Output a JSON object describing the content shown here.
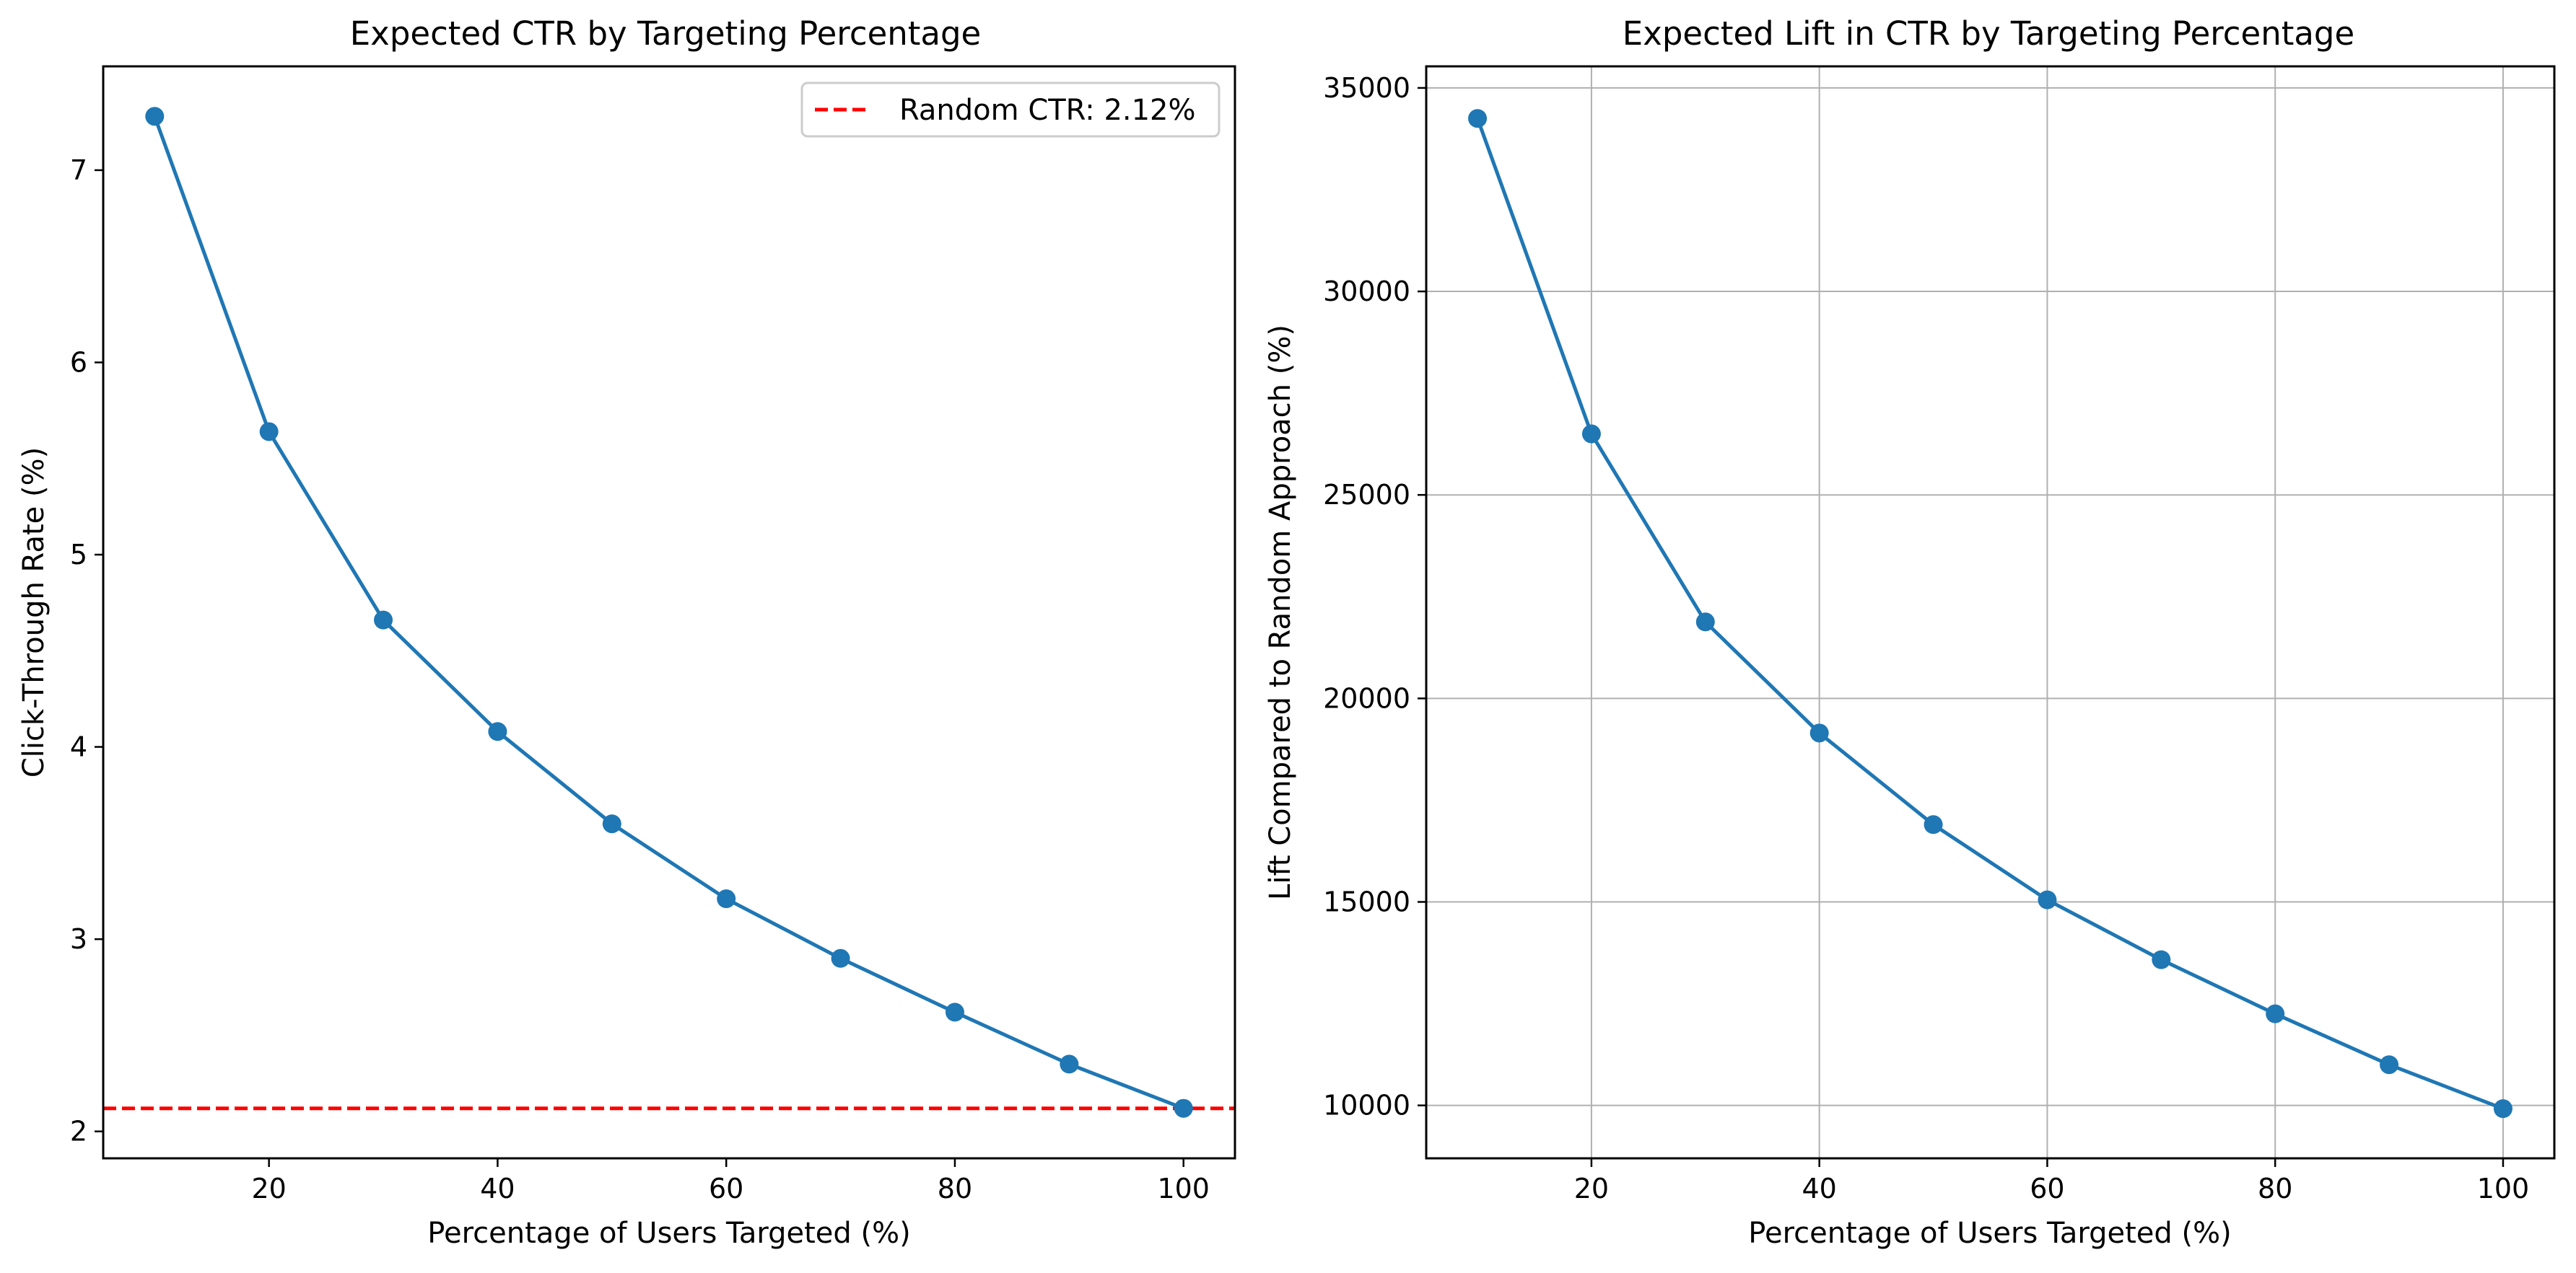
{
  "chart_data": [
    {
      "type": "line",
      "title": "Expected CTR by Targeting Percentage",
      "xlabel": "Percentage of Users Targeted (%)",
      "ylabel": "Click-Through Rate (%)",
      "xlim": [
        5.5,
        104.5
      ],
      "ylim": [
        1.86,
        7.54
      ],
      "xticks": [
        20,
        40,
        60,
        80,
        100
      ],
      "yticks": [
        2,
        3,
        4,
        5,
        6,
        7
      ],
      "grid": false,
      "legend": "top-right",
      "series": [
        {
          "x": [
            10,
            20,
            30,
            40,
            50,
            60,
            70,
            80,
            90,
            100
          ],
          "values": [
            7.28,
            5.64,
            4.66,
            4.08,
            3.6,
            3.21,
            2.9,
            2.62,
            2.35,
            2.12
          ],
          "color": "#1f77b4",
          "marker": "circle"
        }
      ],
      "reference_lines": [
        {
          "orientation": "horizontal",
          "value": 2.12,
          "label": "Random CTR: 2.12%",
          "color": "#ff0000",
          "style": "dashed"
        }
      ]
    },
    {
      "type": "line",
      "title": "Expected Lift in CTR by Targeting Percentage",
      "xlabel": "Percentage of Users Targeted (%)",
      "ylabel": "Lift Compared to Random Approach (%)",
      "xlim": [
        5.5,
        104.5
      ],
      "ylim": [
        8700,
        35530
      ],
      "xticks": [
        20,
        40,
        60,
        80,
        100
      ],
      "yticks": [
        10000,
        15000,
        20000,
        25000,
        30000,
        35000
      ],
      "grid": true,
      "series": [
        {
          "x": [
            10,
            20,
            30,
            40,
            50,
            60,
            70,
            80,
            90,
            100
          ],
          "values": [
            34250,
            26500,
            21880,
            19150,
            16900,
            15050,
            13580,
            12250,
            11000,
            9920
          ],
          "color": "#1f77b4",
          "marker": "circle"
        }
      ]
    }
  ]
}
